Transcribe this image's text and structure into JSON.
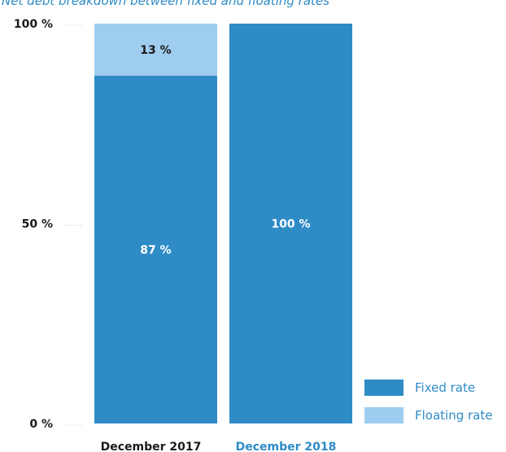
{
  "colors": {
    "fixed": "#2e8bc6",
    "floating": "#9fcdf0",
    "title": "#2e8bc6",
    "label_dark": "#1a1a1a",
    "label_light": "#ffffff",
    "highlight_category": "#2e8bc6"
  },
  "chart_data": {
    "type": "bar",
    "stacked": true,
    "title": "Net debt breakdown between fixed and floating rates",
    "categories": [
      "December 2017",
      "December 2018"
    ],
    "series": [
      {
        "name": "Fixed rate",
        "values": [
          87,
          100
        ],
        "labels": [
          "87 %",
          "100 %"
        ]
      },
      {
        "name": "Floating rate",
        "values": [
          13,
          0
        ],
        "labels": [
          "13 %",
          ""
        ]
      }
    ],
    "ylim": [
      0,
      100
    ],
    "yticks": [
      0,
      50,
      100
    ],
    "ytick_labels": [
      "0 %",
      "50 %",
      "100 %"
    ],
    "legend": "bottom-right",
    "grid": false
  }
}
